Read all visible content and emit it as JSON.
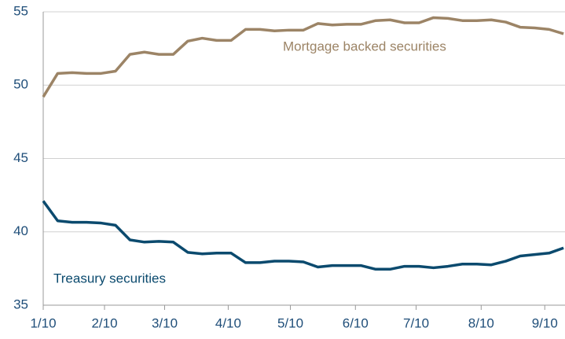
{
  "chart_data": {
    "type": "line",
    "x": [
      0,
      1,
      2,
      3,
      4,
      5,
      6,
      7,
      8,
      9,
      10,
      11,
      12,
      13,
      14,
      15,
      16,
      17,
      18,
      19,
      20,
      21,
      22,
      23,
      24,
      25,
      26,
      27,
      28,
      29,
      30,
      31,
      32,
      33,
      34,
      35,
      36
    ],
    "series": [
      {
        "name": "Mortgage backed securities",
        "color": "#9c8466",
        "values": [
          49.2,
          50.8,
          50.85,
          50.8,
          50.8,
          50.95,
          52.1,
          52.25,
          52.1,
          52.1,
          53.0,
          53.2,
          53.05,
          53.05,
          53.8,
          53.8,
          53.7,
          53.75,
          53.75,
          54.2,
          54.1,
          54.15,
          54.15,
          54.4,
          54.45,
          54.25,
          54.25,
          54.6,
          54.55,
          54.4,
          54.4,
          54.45,
          54.3,
          53.95,
          53.9,
          53.8,
          53.5
        ]
      },
      {
        "name": "Treasury securities",
        "color": "#0b4a6e",
        "values": [
          42.1,
          40.75,
          40.65,
          40.65,
          40.6,
          40.45,
          39.45,
          39.3,
          39.35,
          39.3,
          38.6,
          38.5,
          38.55,
          38.55,
          37.9,
          37.9,
          38.0,
          38.0,
          37.95,
          37.6,
          37.7,
          37.7,
          37.7,
          37.45,
          37.45,
          37.65,
          37.65,
          37.55,
          37.65,
          37.8,
          37.8,
          37.75,
          38.0,
          38.35,
          38.45,
          38.55,
          38.9
        ]
      }
    ],
    "xlim": [
      0,
      36.1
    ],
    "xticks": [
      {
        "value": 0,
        "label": "1/10"
      },
      {
        "value": 4.24,
        "label": "2/10"
      },
      {
        "value": 8.4,
        "label": "3/10"
      },
      {
        "value": 12.8,
        "label": "4/10"
      },
      {
        "value": 17.1,
        "label": "5/10"
      },
      {
        "value": 21.6,
        "label": "6/10"
      },
      {
        "value": 25.8,
        "label": "7/10"
      },
      {
        "value": 30.3,
        "label": "8/10"
      },
      {
        "value": 34.7,
        "label": "9/10"
      }
    ],
    "ylim": [
      35,
      55
    ],
    "yticks": [
      35,
      40,
      45,
      50,
      55
    ],
    "grid": true
  }
}
